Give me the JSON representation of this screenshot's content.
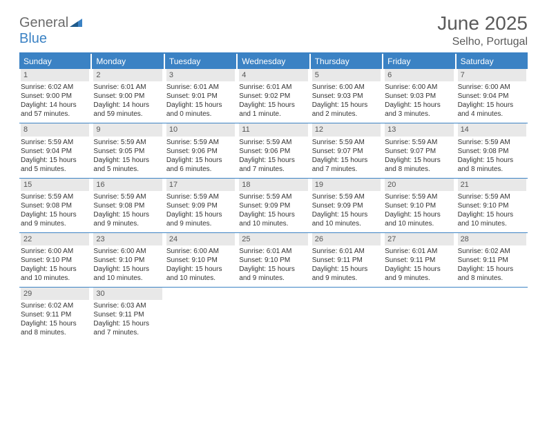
{
  "logo": {
    "word1": "General",
    "word2": "Blue"
  },
  "title": "June 2025",
  "location": "Selho, Portugal",
  "colors": {
    "accent": "#3b82c4",
    "header_text": "#ffffff",
    "daynum_bg": "#e8e8e8",
    "text": "#333333",
    "muted": "#5a5a5a"
  },
  "day_headers": [
    "Sunday",
    "Monday",
    "Tuesday",
    "Wednesday",
    "Thursday",
    "Friday",
    "Saturday"
  ],
  "weeks": [
    [
      {
        "n": "1",
        "sunrise": "6:02 AM",
        "sunset": "9:00 PM",
        "daylight": "14 hours and 57 minutes."
      },
      {
        "n": "2",
        "sunrise": "6:01 AM",
        "sunset": "9:00 PM",
        "daylight": "14 hours and 59 minutes."
      },
      {
        "n": "3",
        "sunrise": "6:01 AM",
        "sunset": "9:01 PM",
        "daylight": "15 hours and 0 minutes."
      },
      {
        "n": "4",
        "sunrise": "6:01 AM",
        "sunset": "9:02 PM",
        "daylight": "15 hours and 1 minute."
      },
      {
        "n": "5",
        "sunrise": "6:00 AM",
        "sunset": "9:03 PM",
        "daylight": "15 hours and 2 minutes."
      },
      {
        "n": "6",
        "sunrise": "6:00 AM",
        "sunset": "9:03 PM",
        "daylight": "15 hours and 3 minutes."
      },
      {
        "n": "7",
        "sunrise": "6:00 AM",
        "sunset": "9:04 PM",
        "daylight": "15 hours and 4 minutes."
      }
    ],
    [
      {
        "n": "8",
        "sunrise": "5:59 AM",
        "sunset": "9:04 PM",
        "daylight": "15 hours and 5 minutes."
      },
      {
        "n": "9",
        "sunrise": "5:59 AM",
        "sunset": "9:05 PM",
        "daylight": "15 hours and 5 minutes."
      },
      {
        "n": "10",
        "sunrise": "5:59 AM",
        "sunset": "9:06 PM",
        "daylight": "15 hours and 6 minutes."
      },
      {
        "n": "11",
        "sunrise": "5:59 AM",
        "sunset": "9:06 PM",
        "daylight": "15 hours and 7 minutes."
      },
      {
        "n": "12",
        "sunrise": "5:59 AM",
        "sunset": "9:07 PM",
        "daylight": "15 hours and 7 minutes."
      },
      {
        "n": "13",
        "sunrise": "5:59 AM",
        "sunset": "9:07 PM",
        "daylight": "15 hours and 8 minutes."
      },
      {
        "n": "14",
        "sunrise": "5:59 AM",
        "sunset": "9:08 PM",
        "daylight": "15 hours and 8 minutes."
      }
    ],
    [
      {
        "n": "15",
        "sunrise": "5:59 AM",
        "sunset": "9:08 PM",
        "daylight": "15 hours and 9 minutes."
      },
      {
        "n": "16",
        "sunrise": "5:59 AM",
        "sunset": "9:08 PM",
        "daylight": "15 hours and 9 minutes."
      },
      {
        "n": "17",
        "sunrise": "5:59 AM",
        "sunset": "9:09 PM",
        "daylight": "15 hours and 9 minutes."
      },
      {
        "n": "18",
        "sunrise": "5:59 AM",
        "sunset": "9:09 PM",
        "daylight": "15 hours and 10 minutes."
      },
      {
        "n": "19",
        "sunrise": "5:59 AM",
        "sunset": "9:09 PM",
        "daylight": "15 hours and 10 minutes."
      },
      {
        "n": "20",
        "sunrise": "5:59 AM",
        "sunset": "9:10 PM",
        "daylight": "15 hours and 10 minutes."
      },
      {
        "n": "21",
        "sunrise": "5:59 AM",
        "sunset": "9:10 PM",
        "daylight": "15 hours and 10 minutes."
      }
    ],
    [
      {
        "n": "22",
        "sunrise": "6:00 AM",
        "sunset": "9:10 PM",
        "daylight": "15 hours and 10 minutes."
      },
      {
        "n": "23",
        "sunrise": "6:00 AM",
        "sunset": "9:10 PM",
        "daylight": "15 hours and 10 minutes."
      },
      {
        "n": "24",
        "sunrise": "6:00 AM",
        "sunset": "9:10 PM",
        "daylight": "15 hours and 10 minutes."
      },
      {
        "n": "25",
        "sunrise": "6:01 AM",
        "sunset": "9:10 PM",
        "daylight": "15 hours and 9 minutes."
      },
      {
        "n": "26",
        "sunrise": "6:01 AM",
        "sunset": "9:11 PM",
        "daylight": "15 hours and 9 minutes."
      },
      {
        "n": "27",
        "sunrise": "6:01 AM",
        "sunset": "9:11 PM",
        "daylight": "15 hours and 9 minutes."
      },
      {
        "n": "28",
        "sunrise": "6:02 AM",
        "sunset": "9:11 PM",
        "daylight": "15 hours and 8 minutes."
      }
    ],
    [
      {
        "n": "29",
        "sunrise": "6:02 AM",
        "sunset": "9:11 PM",
        "daylight": "15 hours and 8 minutes."
      },
      {
        "n": "30",
        "sunrise": "6:03 AM",
        "sunset": "9:11 PM",
        "daylight": "15 hours and 7 minutes."
      },
      null,
      null,
      null,
      null,
      null
    ]
  ],
  "labels": {
    "sunrise": "Sunrise:",
    "sunset": "Sunset:",
    "daylight": "Daylight:"
  }
}
